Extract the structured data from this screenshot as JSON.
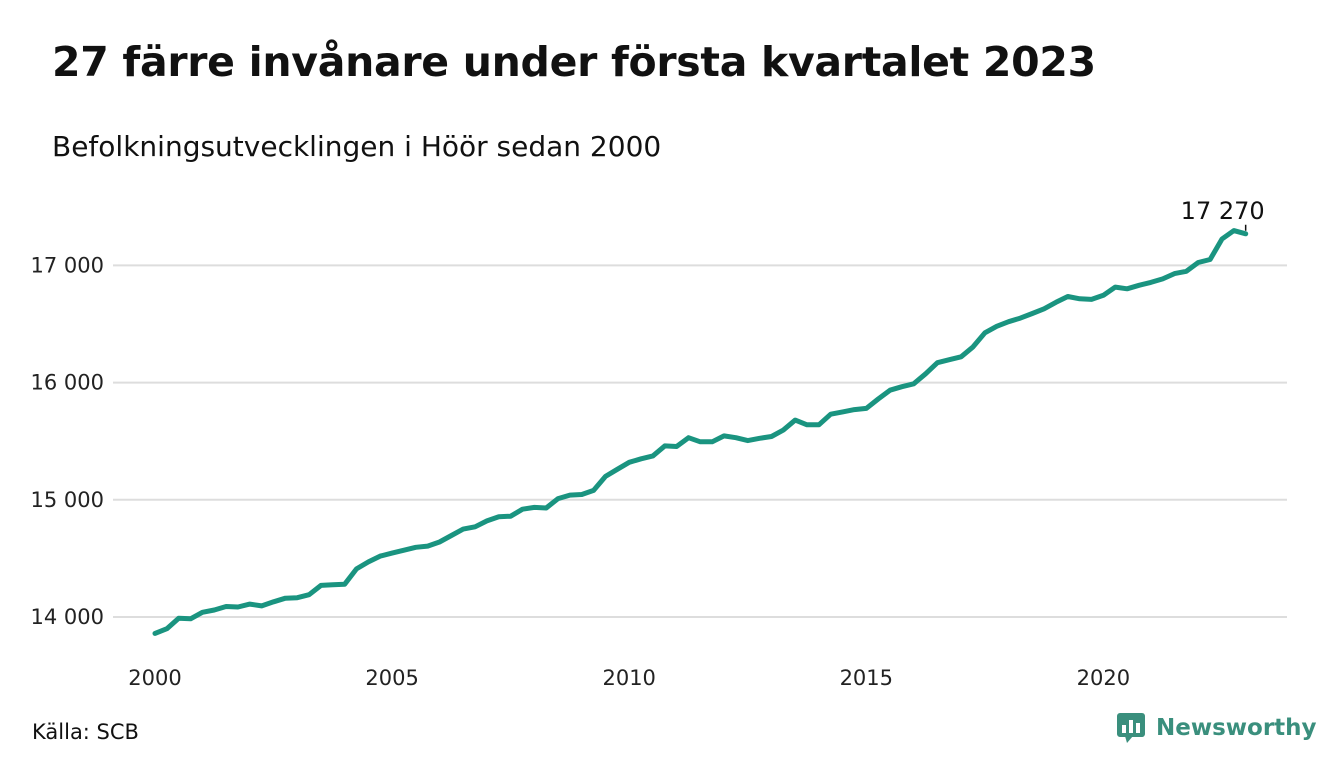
{
  "header": {
    "title": "27 färre invånare under första kvartalet 2023",
    "subtitle": "Befolkningsutvecklingen i Höör sedan 2000"
  },
  "footer": {
    "source": "Källa: SCB",
    "brand": "Newsworthy",
    "brand_icon": "bar-chart-speech-icon"
  },
  "colors": {
    "line": "#1a9480",
    "grid": "#dddddd",
    "brand": "#3a8f7d"
  },
  "chart_data": {
    "type": "line",
    "title": "27 färre invånare under första kvartalet 2023",
    "subtitle": "Befolkningsutvecklingen i Höör sedan 2000",
    "xlabel": "",
    "ylabel": "",
    "xlim": [
      2000,
      2023.25
    ],
    "ylim": [
      13700,
      17400
    ],
    "xticks": [
      2000,
      2005,
      2010,
      2015,
      2020
    ],
    "xtick_labels": [
      "2000",
      "2005",
      "2010",
      "2015",
      "2020"
    ],
    "yticks": [
      14000,
      15000,
      16000,
      17000
    ],
    "ytick_labels": [
      "14 000",
      "15 000",
      "16 000",
      "17 000"
    ],
    "grid": true,
    "last_value_label": "17 270",
    "series": [
      {
        "frequency": "quarterly",
        "start": "2000 Q1",
        "values": [
          13860,
          13900,
          13990,
          13985,
          14040,
          14060,
          14090,
          14085,
          14110,
          14095,
          14130,
          14160,
          14165,
          14190,
          14270,
          14275,
          14280,
          14410,
          14470,
          14520,
          14545,
          14570,
          14595,
          14605,
          14640,
          14695,
          14750,
          14770,
          14820,
          14855,
          14860,
          14920,
          14935,
          14930,
          15010,
          15040,
          15045,
          15080,
          15200,
          15260,
          15320,
          15350,
          15375,
          15460,
          15455,
          15530,
          15495,
          15495,
          15545,
          15530,
          15505,
          15525,
          15540,
          15595,
          15680,
          15640,
          15640,
          15730,
          15750,
          15770,
          15780,
          15860,
          15935,
          15965,
          15990,
          16075,
          16170,
          16195,
          16220,
          16305,
          16425,
          16480,
          16520,
          16550,
          16590,
          16630,
          16685,
          16735,
          16715,
          16710,
          16745,
          16815,
          16800,
          16830,
          16855,
          16885,
          16930,
          16950,
          17025,
          17050,
          17225,
          17297,
          17270
        ]
      }
    ]
  }
}
